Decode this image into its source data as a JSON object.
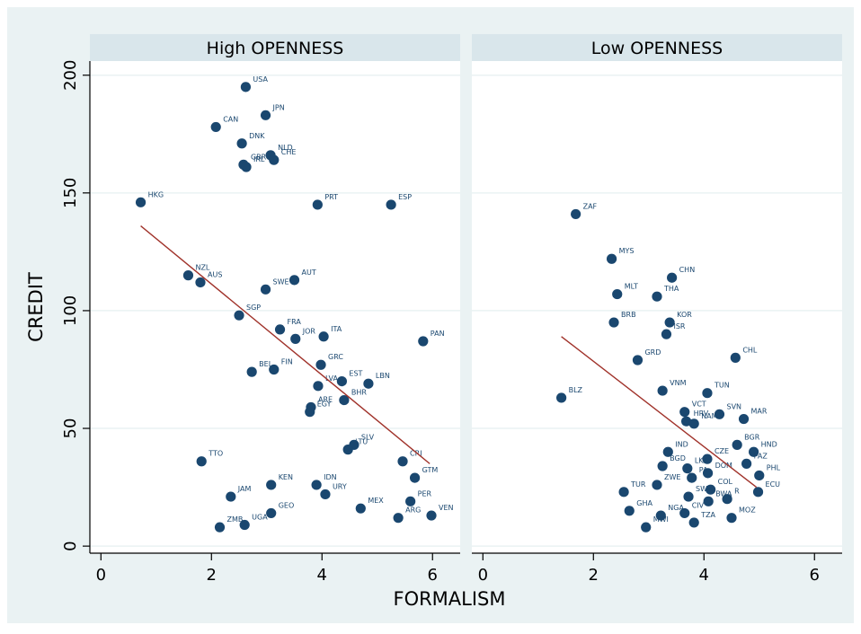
{
  "chart_data": {
    "type": "scatter",
    "xlabel": "FORMALISM",
    "ylabel": "CREDIT",
    "xlim": [
      -0.2,
      6.5
    ],
    "ylim": [
      -3,
      206
    ],
    "xticks": [
      0,
      2,
      4,
      6
    ],
    "yticks": [
      0,
      50,
      100,
      150,
      200
    ],
    "grid": true,
    "legend": "none",
    "colors": {
      "outer_bg": "#EAF2F3",
      "panel_bg": "#FFFFFF",
      "strip_bg": "#D9E6EB",
      "grid": "#EAF2F3",
      "marker": "#1A476F",
      "fit": "#A0322A",
      "text": "#000000"
    },
    "panels": [
      {
        "title": "High OPENNESS",
        "fit": {
          "x": [
            0.72,
            5.95
          ],
          "y": [
            136,
            35
          ]
        },
        "points": [
          {
            "label": "USA",
            "x": 2.62,
            "y": 195
          },
          {
            "label": "JPN",
            "x": 2.98,
            "y": 183
          },
          {
            "label": "CAN",
            "x": 2.08,
            "y": 178
          },
          {
            "label": "DNK",
            "x": 2.55,
            "y": 171
          },
          {
            "label": "NLD",
            "x": 3.07,
            "y": 166
          },
          {
            "label": "CHE",
            "x": 3.13,
            "y": 164
          },
          {
            "label": "GBR",
            "x": 2.58,
            "y": 162
          },
          {
            "label": "IRL",
            "x": 2.63,
            "y": 161
          },
          {
            "label": "HKG",
            "x": 0.72,
            "y": 146
          },
          {
            "label": "PRT",
            "x": 3.92,
            "y": 145
          },
          {
            "label": "ESP",
            "x": 5.25,
            "y": 145
          },
          {
            "label": "NZL",
            "x": 1.58,
            "y": 115
          },
          {
            "label": "AUS",
            "x": 1.8,
            "y": 112
          },
          {
            "label": "AUT",
            "x": 3.5,
            "y": 113
          },
          {
            "label": "SWE",
            "x": 2.98,
            "y": 109
          },
          {
            "label": "SGP",
            "x": 2.5,
            "y": 98
          },
          {
            "label": "FRA",
            "x": 3.24,
            "y": 92
          },
          {
            "label": "JOR",
            "x": 3.52,
            "y": 88
          },
          {
            "label": "ITA",
            "x": 4.03,
            "y": 89
          },
          {
            "label": "PAN",
            "x": 5.83,
            "y": 87
          },
          {
            "label": "GRC",
            "x": 3.98,
            "y": 77
          },
          {
            "label": "BEL",
            "x": 2.73,
            "y": 74
          },
          {
            "label": "FIN",
            "x": 3.13,
            "y": 75
          },
          {
            "label": "EST",
            "x": 4.36,
            "y": 70
          },
          {
            "label": "LVA",
            "x": 3.93,
            "y": 68
          },
          {
            "label": "LBN",
            "x": 4.84,
            "y": 69
          },
          {
            "label": "BHR",
            "x": 4.4,
            "y": 62
          },
          {
            "label": "ARE",
            "x": 3.8,
            "y": 59
          },
          {
            "label": "EGY",
            "x": 3.78,
            "y": 57
          },
          {
            "label": "SLV",
            "x": 4.58,
            "y": 43
          },
          {
            "label": "LTU",
            "x": 4.47,
            "y": 41
          },
          {
            "label": "TTO",
            "x": 1.82,
            "y": 36
          },
          {
            "label": "CRI",
            "x": 5.46,
            "y": 36
          },
          {
            "label": "GTM",
            "x": 5.68,
            "y": 29
          },
          {
            "label": "KEN",
            "x": 3.08,
            "y": 26
          },
          {
            "label": "IDN",
            "x": 3.9,
            "y": 26
          },
          {
            "label": "URY",
            "x": 4.06,
            "y": 22
          },
          {
            "label": "JAM",
            "x": 2.35,
            "y": 21
          },
          {
            "label": "PER",
            "x": 5.6,
            "y": 19
          },
          {
            "label": "MEX",
            "x": 4.7,
            "y": 16
          },
          {
            "label": "GEO",
            "x": 3.08,
            "y": 14
          },
          {
            "label": "VEN",
            "x": 5.98,
            "y": 13
          },
          {
            "label": "ARG",
            "x": 5.38,
            "y": 12
          },
          {
            "label": "UGA",
            "x": 2.6,
            "y": 9
          },
          {
            "label": "ZMB",
            "x": 2.15,
            "y": 8
          }
        ]
      },
      {
        "title": "Low OPENNESS",
        "fit": {
          "x": [
            1.42,
            4.95
          ],
          "y": [
            89,
            25
          ]
        },
        "points": [
          {
            "label": "ZAF",
            "x": 1.68,
            "y": 141
          },
          {
            "label": "MYS",
            "x": 2.33,
            "y": 122
          },
          {
            "label": "CHN",
            "x": 3.42,
            "y": 114
          },
          {
            "label": "MLT",
            "x": 2.43,
            "y": 107
          },
          {
            "label": "THA",
            "x": 3.15,
            "y": 106
          },
          {
            "label": "BRB",
            "x": 2.37,
            "y": 95
          },
          {
            "label": "KOR",
            "x": 3.38,
            "y": 95
          },
          {
            "label": "ISR",
            "x": 3.32,
            "y": 90
          },
          {
            "label": "GRD",
            "x": 2.8,
            "y": 79
          },
          {
            "label": "CHL",
            "x": 4.57,
            "y": 80
          },
          {
            "label": "VNM",
            "x": 3.25,
            "y": 66
          },
          {
            "label": "TUN",
            "x": 4.06,
            "y": 65
          },
          {
            "label": "BLZ",
            "x": 1.42,
            "y": 63
          },
          {
            "label": "VCT",
            "x": 3.65,
            "y": 57
          },
          {
            "label": "SVN",
            "x": 4.28,
            "y": 56
          },
          {
            "label": "HRV",
            "x": 3.68,
            "y": 53
          },
          {
            "label": "NAM",
            "x": 3.82,
            "y": 52
          },
          {
            "label": "MAR",
            "x": 4.72,
            "y": 54
          },
          {
            "label": "BGR",
            "x": 4.6,
            "y": 43
          },
          {
            "label": "IND",
            "x": 3.35,
            "y": 40
          },
          {
            "label": "HND",
            "x": 4.9,
            "y": 40
          },
          {
            "label": "CZE",
            "x": 4.06,
            "y": 37
          },
          {
            "label": "PAZ",
            "x": 4.77,
            "y": 35
          },
          {
            "label": "BGD",
            "x": 3.25,
            "y": 34
          },
          {
            "label": "LKA",
            "x": 3.7,
            "y": 33
          },
          {
            "label": "DOM",
            "x": 4.07,
            "y": 31
          },
          {
            "label": "PA",
            "x": 3.78,
            "y": 29
          },
          {
            "label": "PHL",
            "x": 5.0,
            "y": 30
          },
          {
            "label": "ZWE",
            "x": 3.15,
            "y": 26
          },
          {
            "label": "COL",
            "x": 4.12,
            "y": 24
          },
          {
            "label": "ECU",
            "x": 4.98,
            "y": 23
          },
          {
            "label": "TUR",
            "x": 2.55,
            "y": 23
          },
          {
            "label": "SWZ",
            "x": 3.72,
            "y": 21
          },
          {
            "label": "BWA",
            "x": 4.08,
            "y": 19
          },
          {
            "label": "R",
            "x": 4.42,
            "y": 20
          },
          {
            "label": "GHA",
            "x": 2.65,
            "y": 15
          },
          {
            "label": "NGA",
            "x": 3.22,
            "y": 13
          },
          {
            "label": "CIV",
            "x": 3.65,
            "y": 14
          },
          {
            "label": "TZA",
            "x": 3.82,
            "y": 10
          },
          {
            "label": "MOZ",
            "x": 4.5,
            "y": 12
          },
          {
            "label": "MWI",
            "x": 2.95,
            "y": 8
          }
        ]
      }
    ]
  }
}
